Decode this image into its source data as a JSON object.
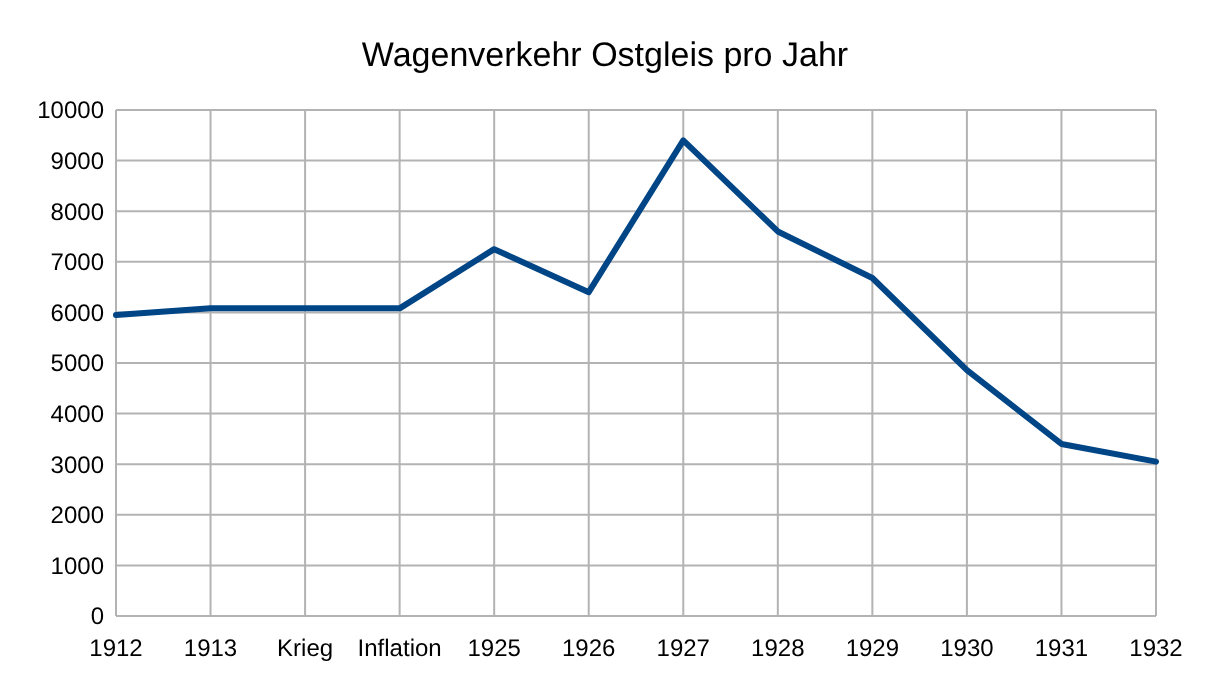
{
  "chart_data": {
    "type": "line",
    "title": "Wagenverkehr Ostgleis pro Jahr",
    "categories": [
      "1912",
      "1913",
      "Krieg",
      "Inflation",
      "1925",
      "1926",
      "1927",
      "1928",
      "1929",
      "1930",
      "1931",
      "1932"
    ],
    "series": [
      {
        "color": "#004586",
        "values": [
          5950,
          6080,
          6080,
          6080,
          7250,
          6400,
          9400,
          7600,
          6680,
          4860,
          3400,
          3050
        ]
      }
    ],
    "ylim": [
      0,
      10000
    ],
    "yticks": [
      0,
      1000,
      2000,
      3000,
      4000,
      5000,
      6000,
      7000,
      8000,
      9000,
      10000
    ],
    "grid": true,
    "marker": "none",
    "line_style": "solid"
  }
}
